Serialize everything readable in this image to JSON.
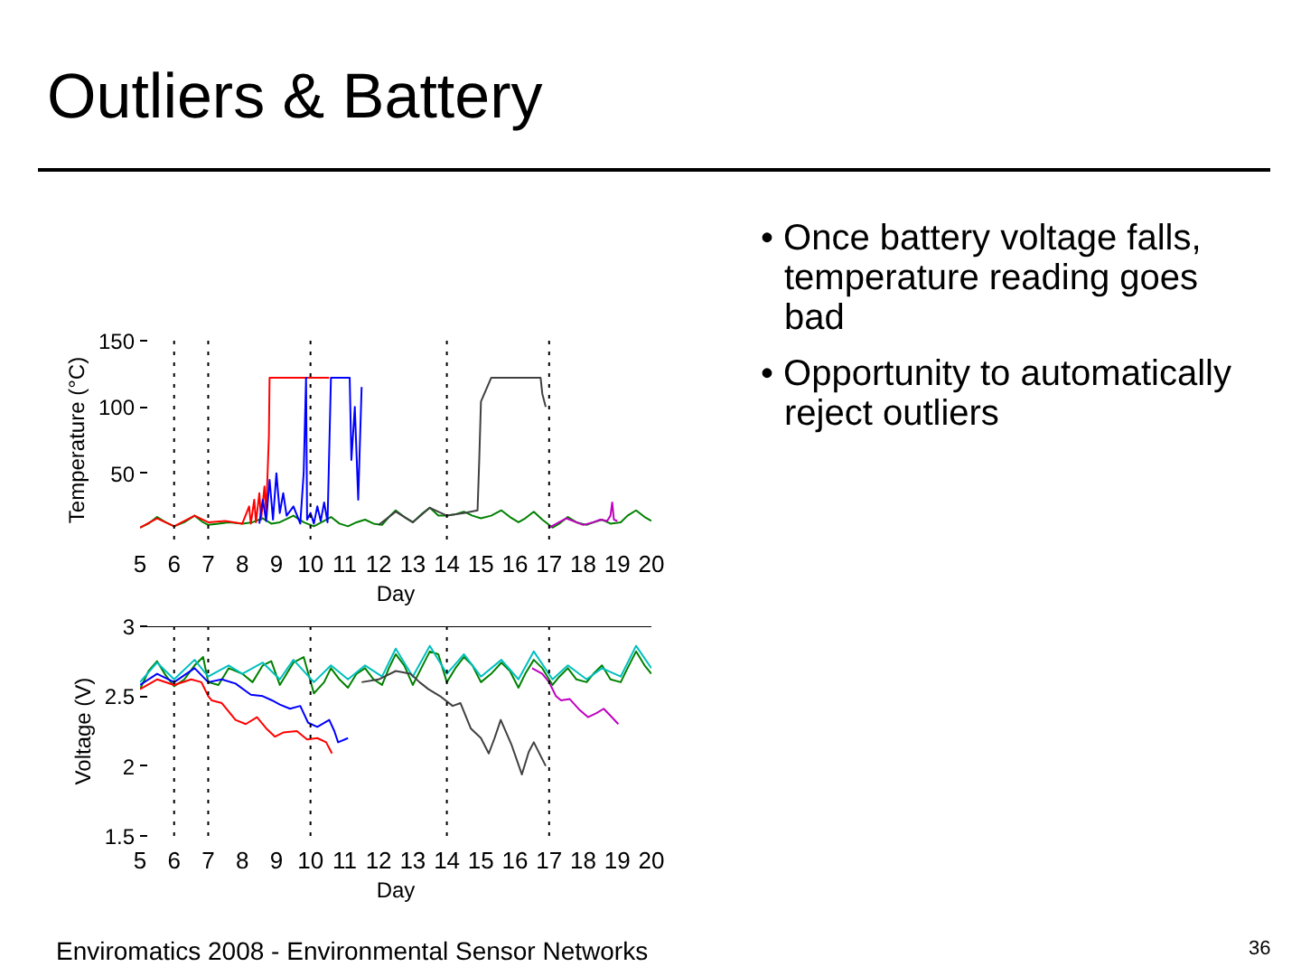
{
  "chart_data": [
    {
      "type": "other",
      "title": "Outliers & Battery",
      "annotations": [
        "• Once battery voltage falls, temperature reading goes bad",
        "• Opportunity to automatically reject outliers",
        "Enviromatics 2008 - Environmental Sensor Networks",
        "36"
      ]
    },
    {
      "type": "line",
      "xlabel": "Day",
      "ylabel": "Temperature (°C)",
      "xlim": [
        5,
        20
      ],
      "xticks": [
        5,
        6,
        7,
        8,
        9,
        10,
        11,
        12,
        13,
        14,
        15,
        16,
        17,
        18,
        19,
        20
      ],
      "ylim": [
        0,
        150
      ],
      "yticks": [
        50,
        100,
        150
      ],
      "ref_lines": [
        {
          "axis": "x",
          "value": 6,
          "color": "#000000",
          "line_style": "dotted"
        },
        {
          "axis": "x",
          "value": 7,
          "color": "#000000",
          "line_style": "dotted"
        },
        {
          "axis": "x",
          "value": 10,
          "color": "#000000",
          "line_style": "dotted"
        },
        {
          "axis": "x",
          "value": 14,
          "color": "#000000",
          "line_style": "dotted"
        },
        {
          "axis": "x",
          "value": 17,
          "color": "#000000",
          "line_style": "dotted"
        }
      ],
      "series": [
        {
          "color": "#008000",
          "x": [
            5.0,
            5.25,
            5.5,
            5.75,
            6.0,
            6.3,
            6.6,
            6.85,
            7.0,
            7.3,
            7.6,
            8.0,
            8.3,
            8.6,
            8.85,
            9.1,
            9.5,
            9.8,
            10.1,
            10.4,
            10.6,
            10.85,
            11.1,
            11.35,
            11.6,
            11.85,
            12.1,
            12.3,
            12.5,
            12.75,
            13.0,
            13.25,
            13.5,
            13.75,
            14.0,
            14.25,
            14.5,
            14.75,
            15.0,
            15.3,
            15.6,
            15.85,
            16.1,
            16.3,
            16.55,
            16.8,
            17.1,
            17.3,
            17.55,
            17.8,
            18.1,
            18.3,
            18.55,
            18.8,
            19.1,
            19.3,
            19.55,
            19.8,
            20.0
          ],
          "values": [
            9,
            12,
            17,
            13,
            10,
            13,
            18,
            13,
            11,
            12,
            13,
            12,
            13,
            16,
            12,
            13,
            18,
            13,
            10,
            14,
            17,
            12,
            10,
            13,
            15,
            12,
            11,
            17,
            22,
            17,
            13,
            19,
            24,
            18,
            18,
            19,
            21,
            18,
            16,
            18,
            22,
            17,
            13,
            16,
            21,
            15,
            9,
            12,
            17,
            13,
            11,
            13,
            15,
            12,
            13,
            18,
            22,
            17,
            14
          ]
        },
        {
          "color": "#ff0000",
          "x": [
            5.0,
            5.5,
            6.0,
            6.6,
            7.0,
            7.5,
            8.0,
            8.2,
            8.25,
            8.35,
            8.4,
            8.5,
            8.55,
            8.65,
            8.7,
            8.78,
            8.8,
            9.5,
            10.0,
            10.55
          ],
          "values": [
            9,
            16,
            10,
            18,
            13,
            14,
            12,
            25,
            12,
            30,
            13,
            35,
            15,
            40,
            20,
            78,
            122,
            122,
            122,
            122
          ]
        },
        {
          "color": "#0000ff",
          "x": [
            8.5,
            8.6,
            8.7,
            8.8,
            8.9,
            9.0,
            9.1,
            9.2,
            9.3,
            9.5,
            9.7,
            9.8,
            9.87,
            9.9,
            10.0,
            10.1,
            10.2,
            10.3,
            10.4,
            10.5,
            10.6,
            10.8,
            11.0,
            11.15,
            11.2,
            11.3,
            11.4,
            11.5
          ],
          "values": [
            12,
            30,
            14,
            45,
            15,
            50,
            20,
            35,
            18,
            25,
            12,
            50,
            122,
            15,
            20,
            12,
            25,
            14,
            28,
            13,
            122,
            122,
            122,
            122,
            60,
            100,
            30,
            115
          ]
        },
        {
          "color": "#404040",
          "x": [
            12.0,
            12.5,
            13.0,
            13.5,
            14.0,
            14.5,
            14.9,
            14.95,
            15.0,
            15.3,
            16.0,
            16.5,
            16.75,
            16.8,
            16.9
          ],
          "values": [
            11,
            21,
            13,
            24,
            18,
            20,
            22,
            60,
            104,
            122,
            122,
            122,
            122,
            110,
            100
          ]
        },
        {
          "color": "#bf00bf",
          "x": [
            17.0,
            17.5,
            18.0,
            18.3,
            18.5,
            18.7,
            18.8,
            18.85,
            18.9,
            19.0
          ],
          "values": [
            9,
            16,
            11,
            13,
            15,
            14,
            18,
            28,
            15,
            14
          ]
        }
      ]
    },
    {
      "type": "line",
      "xlabel": "Day",
      "ylabel": "Voltage (V)",
      "xlim": [
        5,
        20
      ],
      "xticks": [
        5,
        6,
        7,
        8,
        9,
        10,
        11,
        12,
        13,
        14,
        15,
        16,
        17,
        18,
        19,
        20
      ],
      "ylim": [
        1.5,
        3
      ],
      "yticks": [
        1.5,
        2,
        2.5,
        3
      ],
      "ref_lines": [
        {
          "axis": "y",
          "value": 3,
          "color": "#000000",
          "line_style": "solid"
        },
        {
          "axis": "x",
          "value": 6,
          "color": "#000000",
          "line_style": "dotted"
        },
        {
          "axis": "x",
          "value": 7,
          "color": "#000000",
          "line_style": "dotted"
        },
        {
          "axis": "x",
          "value": 10,
          "color": "#000000",
          "line_style": "dotted"
        },
        {
          "axis": "x",
          "value": 14,
          "color": "#000000",
          "line_style": "dotted"
        },
        {
          "axis": "x",
          "value": 17,
          "color": "#000000",
          "line_style": "dotted"
        }
      ],
      "series": [
        {
          "color": "#008000",
          "x": [
            5.0,
            5.25,
            5.5,
            5.75,
            6.0,
            6.3,
            6.6,
            6.85,
            7.0,
            7.3,
            7.6,
            8.0,
            8.3,
            8.6,
            8.85,
            9.1,
            9.5,
            9.8,
            10.1,
            10.4,
            10.6,
            10.85,
            11.1,
            11.35,
            11.6,
            11.85,
            12.1,
            12.3,
            12.5,
            12.75,
            13.0,
            13.25,
            13.5,
            13.75,
            14.0,
            14.25,
            14.5,
            14.75,
            15.0,
            15.3,
            15.6,
            15.85,
            16.1,
            16.3,
            16.55,
            16.8,
            17.1,
            17.3,
            17.55,
            17.8,
            18.1,
            18.3,
            18.55,
            18.8,
            19.1,
            19.3,
            19.55,
            19.8,
            20.0
          ],
          "values": [
            2.55,
            2.68,
            2.75,
            2.65,
            2.57,
            2.62,
            2.72,
            2.78,
            2.6,
            2.58,
            2.7,
            2.66,
            2.6,
            2.72,
            2.75,
            2.58,
            2.74,
            2.78,
            2.52,
            2.6,
            2.7,
            2.62,
            2.56,
            2.66,
            2.7,
            2.62,
            2.58,
            2.7,
            2.8,
            2.72,
            2.58,
            2.7,
            2.82,
            2.8,
            2.6,
            2.7,
            2.78,
            2.72,
            2.6,
            2.66,
            2.74,
            2.68,
            2.56,
            2.66,
            2.76,
            2.7,
            2.58,
            2.64,
            2.7,
            2.62,
            2.6,
            2.66,
            2.72,
            2.62,
            2.6,
            2.7,
            2.82,
            2.72,
            2.66
          ]
        },
        {
          "color": "#00bfbf",
          "x": [
            5.0,
            5.5,
            6.0,
            6.6,
            7.0,
            7.6,
            8.0,
            8.6,
            9.1,
            9.5,
            10.1,
            10.6,
            11.1,
            11.6,
            12.1,
            12.5,
            13.0,
            13.5,
            14.0,
            14.5,
            15.0,
            15.6,
            16.1,
            16.55,
            17.1,
            17.55,
            18.1,
            18.55,
            19.1,
            19.55,
            20.0
          ],
          "values": [
            2.6,
            2.74,
            2.62,
            2.76,
            2.64,
            2.72,
            2.66,
            2.74,
            2.62,
            2.76,
            2.6,
            2.72,
            2.62,
            2.72,
            2.64,
            2.84,
            2.64,
            2.86,
            2.66,
            2.8,
            2.64,
            2.76,
            2.62,
            2.82,
            2.62,
            2.72,
            2.62,
            2.7,
            2.64,
            2.86,
            2.7
          ]
        },
        {
          "color": "#ff0000",
          "x": [
            5.0,
            5.5,
            6.0,
            6.5,
            6.8,
            7.0,
            7.1,
            7.4,
            7.8,
            8.1,
            8.43,
            8.7,
            8.96,
            9.2,
            9.6,
            9.9,
            10.2,
            10.46,
            10.63
          ],
          "values": [
            2.55,
            2.62,
            2.58,
            2.62,
            2.6,
            2.5,
            2.47,
            2.45,
            2.33,
            2.3,
            2.35,
            2.27,
            2.21,
            2.24,
            2.25,
            2.19,
            2.2,
            2.17,
            2.09
          ]
        },
        {
          "color": "#0000ff",
          "x": [
            5.0,
            5.5,
            6.0,
            6.6,
            7.0,
            7.4,
            7.8,
            8.25,
            8.6,
            8.87,
            9.1,
            9.4,
            9.7,
            9.93,
            10.2,
            10.55,
            10.7,
            10.81,
            11.1
          ],
          "values": [
            2.58,
            2.66,
            2.6,
            2.7,
            2.6,
            2.62,
            2.59,
            2.51,
            2.5,
            2.47,
            2.44,
            2.41,
            2.43,
            2.31,
            2.28,
            2.33,
            2.25,
            2.17,
            2.2
          ]
        },
        {
          "color": "#404040",
          "x": [
            11.5,
            12.0,
            12.5,
            12.93,
            13.2,
            13.46,
            13.8,
            14.17,
            14.4,
            14.7,
            15.0,
            15.23,
            15.4,
            15.58,
            15.9,
            16.2,
            16.4,
            16.55,
            16.9
          ],
          "values": [
            2.6,
            2.62,
            2.68,
            2.66,
            2.6,
            2.55,
            2.5,
            2.43,
            2.45,
            2.27,
            2.2,
            2.09,
            2.2,
            2.33,
            2.15,
            1.94,
            2.1,
            2.17,
            2.0
          ]
        },
        {
          "color": "#bf00bf",
          "x": [
            16.5,
            16.8,
            17.0,
            17.2,
            17.35,
            17.6,
            17.9,
            18.14,
            18.4,
            18.6,
            18.8,
            19.03
          ],
          "values": [
            2.7,
            2.66,
            2.6,
            2.5,
            2.47,
            2.48,
            2.4,
            2.35,
            2.38,
            2.41,
            2.36,
            2.3
          ]
        }
      ]
    }
  ]
}
